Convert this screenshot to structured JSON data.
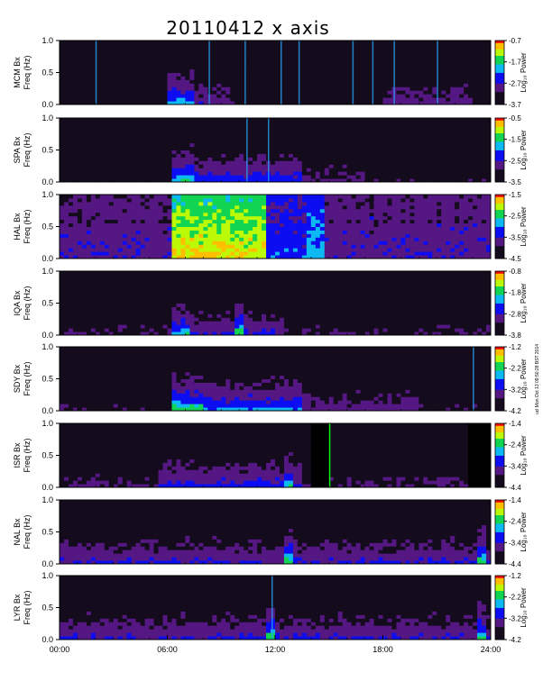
{
  "chart_data": {
    "type": "heatmap",
    "title": "20110412 x axis",
    "x_axis": {
      "range": [
        "00:00",
        "24:00"
      ],
      "ticks": [
        "00:00",
        "06:00",
        "12:00",
        "18:00",
        "24:00"
      ]
    },
    "stamp": "ucl Mon Oct 13 09:50:28 BST 2014",
    "panels": [
      {
        "station": "MCM",
        "ylabel_line1": "MCM Bx",
        "ylabel_line2": "Freq (Hz)",
        "y_ticks": [
          "1.0",
          "0.5",
          "0.0"
        ],
        "ylim": [
          0,
          1.0
        ],
        "colorbar_label": "Log₁₀ Power",
        "colorbar_ticks": [
          "-0.7",
          "-1.7",
          "-2.7",
          "-3.7"
        ],
        "color_range": [
          -3.7,
          -0.7
        ],
        "activity_note": "enhancement 06:00-07:30; narrow vertical lines near 02:00, 08:15, 10:20, 12:20, 13:30, 16:20, 17:30, 18:40, 21:00"
      },
      {
        "station": "SPA",
        "ylabel_line1": "SPA Bx",
        "ylabel_line2": "Freq (Hz)",
        "y_ticks": [
          "1.0",
          "0.5",
          "0.0"
        ],
        "ylim": [
          0,
          1.0
        ],
        "colorbar_label": "Log₁₀ Power",
        "colorbar_ticks": [
          "-0.5",
          "-1.5",
          "-2.5",
          "-3.5"
        ],
        "color_range": [
          -3.5,
          -0.5
        ],
        "activity_note": "onset 06:15, activity through 13:30"
      },
      {
        "station": "HAL",
        "ylabel_line1": "HAL Bx",
        "ylabel_line2": "Freq (Hz)",
        "y_ticks": [
          "1.0",
          "0.5",
          "0.0"
        ],
        "ylim": [
          0,
          1.0
        ],
        "colorbar_label": "Log₁₀ Power",
        "colorbar_ticks": [
          "-1.5",
          "-2.5",
          "-3.5",
          "-4.5"
        ],
        "color_range": [
          -4.5,
          -1.5
        ],
        "activity_note": "broadband high power 06:15-11:30 with red streaks near 09:00-10:30"
      },
      {
        "station": "IQA",
        "ylabel_line1": "IQA Bx",
        "ylabel_line2": "Freq (Hz)",
        "y_ticks": [
          "1.0",
          "0.5",
          "0.0"
        ],
        "ylim": [
          0,
          1.0
        ],
        "colorbar_label": "Log₁₀ Power",
        "colorbar_ticks": [
          "-0.8",
          "-1.8",
          "-2.8",
          "-3.8"
        ],
        "color_range": [
          -3.8,
          -0.8
        ],
        "activity_note": "onset 06:15, strong burst near 10:00"
      },
      {
        "station": "SDY",
        "ylabel_line1": "SDY Bx",
        "ylabel_line2": "Freq (Hz)",
        "y_ticks": [
          "1.0",
          "0.5",
          "0.0"
        ],
        "ylim": [
          0,
          1.0
        ],
        "colorbar_label": "Log₁₀ Power",
        "colorbar_ticks": [
          "-1.2",
          "-2.2",
          "-3.2",
          "-4.2"
        ],
        "color_range": [
          -4.2,
          -1.2
        ],
        "activity_note": "onset 06:30, strong low-frequency power 06:30-13:00"
      },
      {
        "station": "ISR",
        "ylabel_line1": "ISR Bx",
        "ylabel_line2": "Freq (Hz)",
        "y_ticks": [
          "1.0",
          "0.5",
          "0.0"
        ],
        "ylim": [
          0,
          1.0
        ],
        "colorbar_label": "Log₁₀ Power",
        "colorbar_ticks": [
          "-1.4",
          "-2.4",
          "-3.4",
          "-4.4"
        ],
        "color_range": [
          -4.4,
          -1.4
        ],
        "activity_note": "data gaps 14:00-15:00 and 22:40-24:00"
      },
      {
        "station": "NAL",
        "ylabel_line1": "NAL Bx",
        "ylabel_line2": "Freq (Hz)",
        "y_ticks": [
          "1.0",
          "0.5",
          "0.0"
        ],
        "ylim": [
          0,
          1.0
        ],
        "colorbar_label": "Log₁₀ Power",
        "colorbar_ticks": [
          "-1.4",
          "-2.4",
          "-3.4",
          "-4.4"
        ],
        "color_range": [
          -4.4,
          -1.4
        ],
        "activity_note": "broadband low-frequency activity, burst near 13:00 and 23:30"
      },
      {
        "station": "LYR",
        "ylabel_line1": "LYR Bx",
        "ylabel_line2": "Freq (Hz)",
        "y_ticks": [
          "1.0",
          "0.5",
          "0.0"
        ],
        "ylim": [
          0,
          1.0
        ],
        "colorbar_label": "Log₁₀ Power",
        "colorbar_ticks": [
          "-1.2",
          "-2.2",
          "-3.2",
          "-4.2"
        ],
        "color_range": [
          -4.2,
          -1.2
        ],
        "activity_note": "low-frequency activity throughout, spike near 11:45 and 23:30"
      }
    ]
  }
}
